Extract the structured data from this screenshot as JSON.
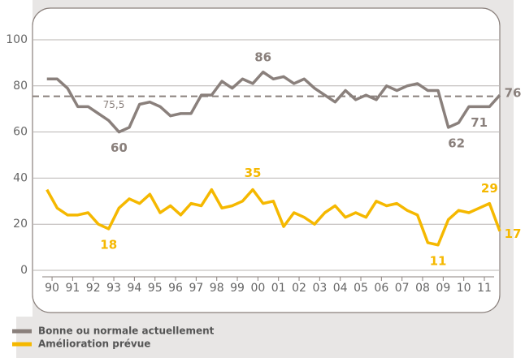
{
  "chart_data": {
    "type": "line",
    "x": [
      1989.75,
      1990.25,
      1990.75,
      1991.25,
      1991.75,
      1992.25,
      1992.75,
      1993.25,
      1993.75,
      1994.25,
      1994.75,
      1995.25,
      1995.75,
      1996.25,
      1996.75,
      1997.25,
      1997.75,
      1998.25,
      1998.75,
      1999.25,
      1999.75,
      2000.25,
      2000.75,
      2001.25,
      2001.75,
      2002.25,
      2002.75,
      2003.25,
      2003.75,
      2004.25,
      2004.75,
      2005.25,
      2005.75,
      2006.25,
      2006.75,
      2007.25,
      2007.75,
      2008.25,
      2008.75,
      2009.25,
      2009.75,
      2010.25,
      2010.75,
      2011.25,
      2011.75
    ],
    "series": [
      {
        "name": "Bonne ou normale actuellement",
        "color": "#8a807c",
        "values": [
          83,
          83,
          79,
          71,
          71,
          68,
          65,
          60,
          62,
          72,
          73,
          71,
          67,
          68,
          68,
          76,
          76,
          82,
          79,
          83,
          81,
          86,
          83,
          84,
          81,
          83,
          79,
          76,
          73,
          78,
          74,
          76,
          74,
          80,
          78,
          80,
          81,
          78,
          78,
          62,
          64,
          71,
          71,
          71,
          76
        ]
      },
      {
        "name": "Amélioration prévue",
        "color": "#f5b800",
        "values": [
          35,
          27,
          24,
          24,
          25,
          20,
          18,
          27,
          31,
          29,
          33,
          25,
          28,
          24,
          29,
          28,
          35,
          27,
          28,
          30,
          35,
          29,
          30,
          19,
          25,
          23,
          20,
          25,
          28,
          23,
          25,
          23,
          30,
          28,
          29,
          26,
          24,
          12,
          11,
          22,
          26,
          25,
          27,
          29,
          17
        ]
      }
    ],
    "reference_line": {
      "value": 75.5,
      "label": "75,5"
    },
    "xlim": [
      1989.05,
      2011.75
    ],
    "xticks": [
      {
        "value": 1990,
        "label": "90"
      },
      {
        "value": 1991,
        "label": "91"
      },
      {
        "value": 1992,
        "label": "92"
      },
      {
        "value": 1993,
        "label": "93"
      },
      {
        "value": 1994,
        "label": "94"
      },
      {
        "value": 1995,
        "label": "95"
      },
      {
        "value": 1996,
        "label": "96"
      },
      {
        "value": 1997,
        "label": "97"
      },
      {
        "value": 1998,
        "label": "98"
      },
      {
        "value": 1999,
        "label": "99"
      },
      {
        "value": 2000,
        "label": "00"
      },
      {
        "value": 2001,
        "label": "01"
      },
      {
        "value": 2002,
        "label": "02"
      },
      {
        "value": 2003,
        "label": "03"
      },
      {
        "value": 2004,
        "label": "04"
      },
      {
        "value": 2005,
        "label": "05"
      },
      {
        "value": 2006,
        "label": "06"
      },
      {
        "value": 2007,
        "label": "07"
      },
      {
        "value": 2008,
        "label": "08"
      },
      {
        "value": 2009,
        "label": "09"
      },
      {
        "value": 2010,
        "label": "10"
      },
      {
        "value": 2011,
        "label": "11"
      }
    ],
    "ylim": [
      0,
      100
    ],
    "yticks": [
      0,
      20,
      40,
      60,
      80,
      100
    ],
    "grid": true
  }
}
